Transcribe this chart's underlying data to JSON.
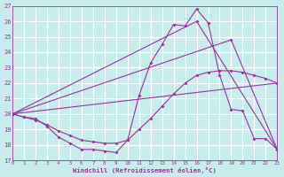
{
  "background_color": "#c8ecec",
  "grid_color": "#ffffff",
  "line_color": "#993399",
  "xlim": [
    0,
    23
  ],
  "ylim": [
    17,
    27
  ],
  "yticks": [
    17,
    18,
    19,
    20,
    21,
    22,
    23,
    24,
    25,
    26,
    27
  ],
  "xticks": [
    0,
    1,
    2,
    3,
    4,
    5,
    6,
    7,
    8,
    9,
    10,
    11,
    12,
    13,
    14,
    15,
    16,
    17,
    18,
    19,
    20,
    21,
    22,
    23
  ],
  "xlabel": "Windchill (Refroidissement éolien,°C)",
  "line1_x": [
    0,
    1,
    2,
    3,
    4,
    5,
    6,
    7,
    8,
    9,
    10,
    11,
    12,
    13,
    14,
    15,
    16,
    17,
    18,
    19,
    20,
    21,
    22,
    23
  ],
  "line1_y": [
    20.0,
    19.8,
    19.7,
    19.2,
    18.5,
    18.1,
    17.7,
    17.7,
    17.6,
    17.5,
    18.3,
    21.2,
    23.3,
    24.5,
    25.8,
    25.7,
    26.8,
    25.9,
    22.5,
    20.3,
    20.2,
    18.4,
    18.4,
    17.7
  ],
  "line2_x": [
    0,
    1,
    2,
    3,
    4,
    5,
    6,
    7,
    8,
    9,
    10,
    11,
    12,
    13,
    14,
    15,
    16,
    17,
    18,
    19,
    20,
    21,
    22,
    23
  ],
  "line2_y": [
    20.0,
    19.8,
    19.6,
    19.3,
    18.9,
    18.6,
    18.3,
    18.2,
    18.1,
    18.1,
    18.3,
    19.0,
    19.7,
    20.5,
    21.3,
    22.0,
    22.5,
    22.7,
    22.8,
    22.8,
    22.7,
    22.5,
    22.3,
    22.0
  ],
  "line3_x": [
    0,
    23
  ],
  "line3_y": [
    20.0,
    22.0
  ],
  "line4_x": [
    0,
    16,
    23
  ],
  "line4_y": [
    20.0,
    26.0,
    17.7
  ],
  "line5_x": [
    0,
    19,
    23
  ],
  "line5_y": [
    20.0,
    24.8,
    17.7
  ]
}
